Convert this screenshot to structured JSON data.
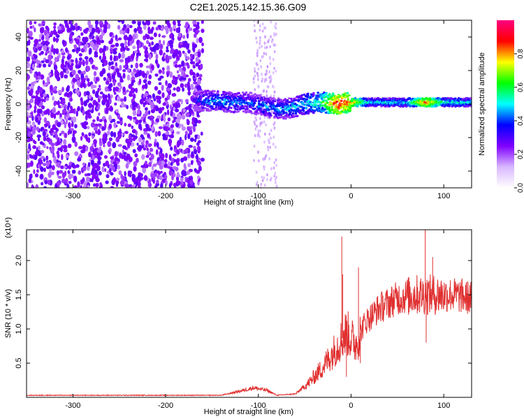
{
  "title": "C2E1.2025.142.15.36.G09",
  "chart_data": [
    {
      "type": "heatmap",
      "xlabel": "Height of straight line (km)",
      "ylabel": "Frequency (Hz)",
      "xlim": [
        -350,
        130
      ],
      "ylim": [
        -50,
        50
      ],
      "xticks": [
        -300,
        -200,
        -100,
        0,
        100
      ],
      "yticks": [
        -40,
        -20,
        0,
        20,
        40
      ],
      "colorbar": {
        "label": "Normalized spectral amplitude",
        "range": [
          0,
          1
        ],
        "ticks": [
          0.0,
          0.2,
          0.4,
          0.6,
          0.8
        ],
        "colormap": [
          "#ffffff",
          "#d9b8ff",
          "#8000ff",
          "#0000ff",
          "#00ffff",
          "#00ff00",
          "#ffff00",
          "#ff0000",
          "#ff0080"
        ]
      },
      "noise_region_x": [
        -350,
        -160
      ],
      "signal_track": [
        {
          "x": -170,
          "y": 2,
          "a": 0.35
        },
        {
          "x": -150,
          "y": 2,
          "a": 0.45
        },
        {
          "x": -130,
          "y": 1,
          "a": 0.45
        },
        {
          "x": -110,
          "y": 1,
          "a": 0.4
        },
        {
          "x": -90,
          "y": -2,
          "a": 0.45
        },
        {
          "x": -70,
          "y": -3,
          "a": 0.45
        },
        {
          "x": -50,
          "y": 0,
          "a": 0.5
        },
        {
          "x": -30,
          "y": 1,
          "a": 0.6
        },
        {
          "x": -15,
          "y": 0,
          "a": 0.9
        },
        {
          "x": 0,
          "y": 1,
          "a": 0.8
        },
        {
          "x": 20,
          "y": 1,
          "a": 0.5
        },
        {
          "x": 60,
          "y": 1,
          "a": 0.5
        },
        {
          "x": 80,
          "y": 1,
          "a": 0.85
        },
        {
          "x": 100,
          "y": 1,
          "a": 0.55
        },
        {
          "x": 130,
          "y": 1,
          "a": 0.5
        }
      ]
    },
    {
      "type": "line",
      "xlabel": "Height of straight line (km)",
      "ylabel": "SNR (10 * v/v)",
      "y_multiplier": "(x10⁴)",
      "xlim": [
        -350,
        130
      ],
      "ylim": [
        0,
        2.45
      ],
      "xticks": [
        -300,
        -200,
        -100,
        0,
        100
      ],
      "yticks": [
        0.5,
        1.0,
        1.5,
        2.0
      ],
      "color": "#e03030",
      "baseline": [
        {
          "x": -350,
          "y": 0.03
        },
        {
          "x": -140,
          "y": 0.03
        },
        {
          "x": -120,
          "y": 0.09
        },
        {
          "x": -105,
          "y": 0.14
        },
        {
          "x": -90,
          "y": 0.1
        },
        {
          "x": -80,
          "y": 0.03
        },
        {
          "x": -60,
          "y": 0.05
        },
        {
          "x": -45,
          "y": 0.22
        },
        {
          "x": -30,
          "y": 0.45
        },
        {
          "x": -15,
          "y": 0.75
        },
        {
          "x": -5,
          "y": 0.95
        },
        {
          "x": 5,
          "y": 0.78
        },
        {
          "x": 15,
          "y": 1.1
        },
        {
          "x": 30,
          "y": 1.3
        },
        {
          "x": 50,
          "y": 1.45
        },
        {
          "x": 70,
          "y": 1.5
        },
        {
          "x": 90,
          "y": 1.5
        },
        {
          "x": 110,
          "y": 1.5
        },
        {
          "x": 130,
          "y": 1.45
        }
      ],
      "spikes": [
        {
          "x": -10,
          "y": 2.35
        },
        {
          "x": -9,
          "y": 1.8
        },
        {
          "x": -5,
          "y": 0.3
        },
        {
          "x": 8,
          "y": 1.9
        },
        {
          "x": 10,
          "y": 0.5
        },
        {
          "x": 80,
          "y": 2.45
        },
        {
          "x": 81,
          "y": 0.8
        },
        {
          "x": 88,
          "y": 2.05
        }
      ]
    }
  ]
}
